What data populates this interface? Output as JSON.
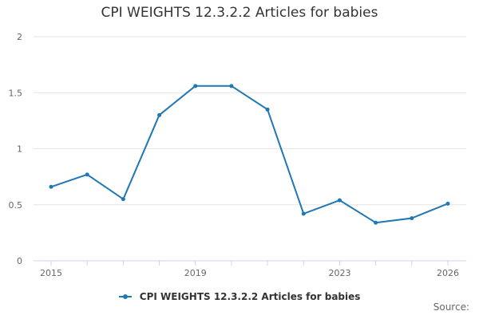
{
  "chart_data": {
    "type": "line",
    "title": "CPI WEIGHTS 12.3.2.2 Articles for babies",
    "xlabel": "",
    "ylabel": "",
    "ylim": [
      0,
      2
    ],
    "yticks": [
      "0",
      "0.5",
      "1",
      "1.5",
      "2"
    ],
    "xlim": [
      2015,
      2026
    ],
    "xticks": [
      "2015",
      "2019",
      "2023",
      "2026"
    ],
    "grid": true,
    "legend_position": "bottom",
    "series": [
      {
        "name": "CPI WEIGHTS 12.3.2.2 Articles for babies",
        "color": "#1f77b4",
        "x": [
          2015,
          2016,
          2017,
          2018,
          2019,
          2020,
          2021,
          2022,
          2023,
          2024,
          2025,
          2026
        ],
        "values": [
          0.66,
          0.77,
          0.55,
          1.3,
          1.56,
          1.56,
          1.35,
          0.42,
          0.54,
          0.34,
          0.38,
          0.51
        ]
      }
    ]
  },
  "source_label": "Source:"
}
